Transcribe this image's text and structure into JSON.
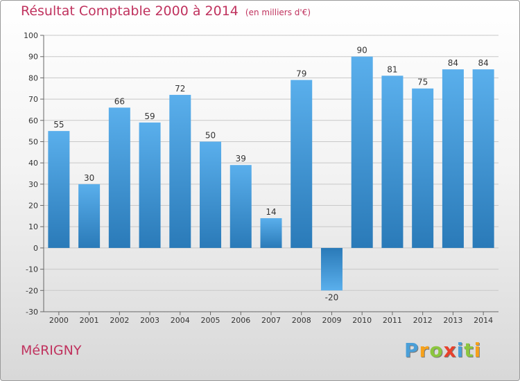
{
  "title": "Résultat Comptable 2000 à 2014",
  "subtitle": "(en milliers d'€)",
  "commune": "MéRIGNY",
  "brand": {
    "letters": [
      "P",
      "r",
      "o",
      "x",
      "i",
      "t",
      "i"
    ],
    "colors": [
      "#4a9fd8",
      "#f7a21b",
      "#8cc63f",
      "#e8412c",
      "#4a9fd8",
      "#8cc63f",
      "#f7a21b"
    ]
  },
  "colors": {
    "title": "#c0325e",
    "bar_light": "#5aafec",
    "bar_dark": "#2a7ab8",
    "grid": "#c8c8c8",
    "axis_text": "#333333"
  },
  "chart_data": {
    "type": "bar",
    "categories": [
      "2000",
      "2001",
      "2002",
      "2003",
      "2004",
      "2005",
      "2006",
      "2007",
      "2008",
      "2009",
      "2010",
      "2011",
      "2012",
      "2013",
      "2014"
    ],
    "values": [
      55,
      30,
      66,
      59,
      72,
      50,
      39,
      14,
      79,
      -20,
      90,
      81,
      75,
      84,
      84
    ],
    "data_labels": [
      "55",
      "30",
      "66",
      "59",
      "72",
      "50",
      "39",
      "14",
      "79",
      "-20",
      "90",
      "81",
      "75",
      "84",
      "84"
    ],
    "ylim": [
      -30,
      100
    ],
    "yticks": [
      -30,
      -20,
      -10,
      0,
      10,
      20,
      30,
      40,
      50,
      60,
      70,
      80,
      90,
      100
    ],
    "grid": true,
    "xlabel": "",
    "ylabel": ""
  }
}
